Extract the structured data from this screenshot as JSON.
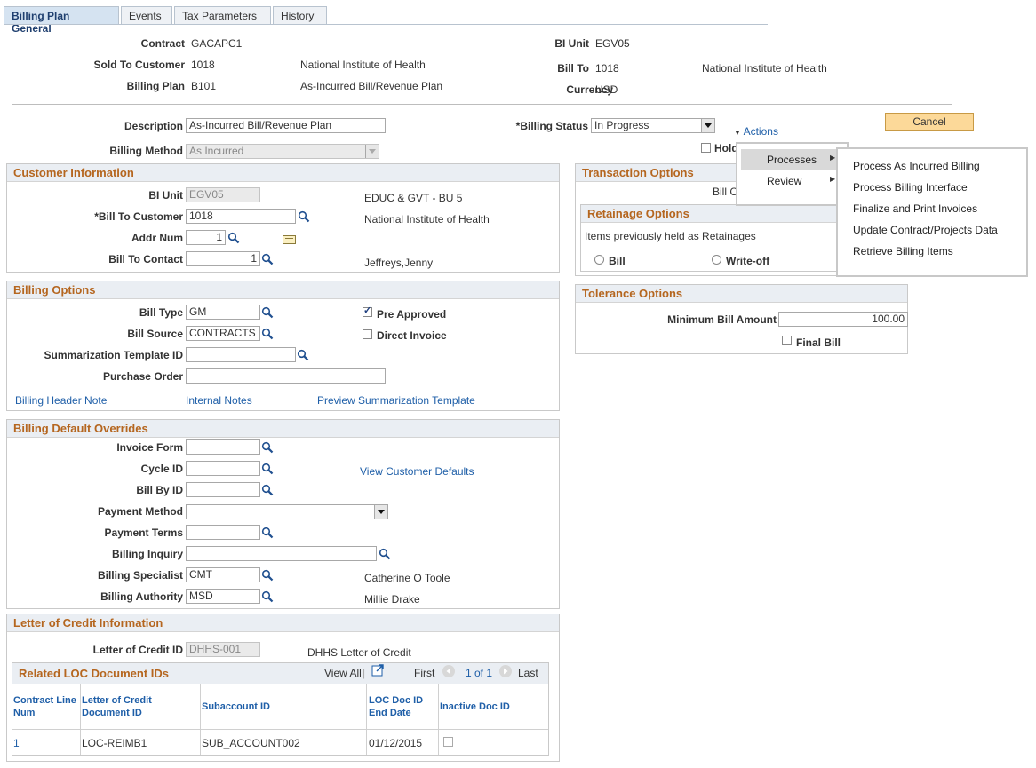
{
  "tabs": [
    "Billing Plan General",
    "Events",
    "Tax Parameters",
    "History"
  ],
  "header": {
    "contract_label": "Contract",
    "contract": "GACAPC1",
    "sold_to_label": "Sold To Customer",
    "sold_to": "1018",
    "sold_to_name": "National Institute of Health",
    "billing_plan_label": "Billing Plan",
    "billing_plan": "B101",
    "billing_plan_desc": "As-Incurred Bill/Revenue Plan",
    "bi_unit_label": "BI Unit",
    "bi_unit": "EGV05",
    "bill_to_label": "Bill To",
    "bill_to": "1018",
    "bill_to_name": "National Institute of Health",
    "currency_label": "Currency",
    "currency": "USD"
  },
  "form": {
    "description_label": "Description",
    "description": "As-Incurred Bill/Revenue Plan",
    "billing_status_label": "*Billing Status",
    "billing_status": "In Progress",
    "actions_label": "Actions",
    "cancel_label": "Cancel",
    "hold_label": "Hold",
    "billing_method_label": "Billing Method",
    "billing_method": "As Incurred"
  },
  "customer_info": {
    "title": "Customer Information",
    "bi_unit_label": "BI Unit",
    "bi_unit": "EGV05",
    "bi_unit_name": "EDUC & GVT - BU 5",
    "bill_to_label": "*Bill To Customer",
    "bill_to": "1018",
    "bill_to_name": "National Institute of Health",
    "addr_num_label": "Addr Num",
    "addr_num": "1",
    "contact_label": "Bill To Contact",
    "contact": "1",
    "contact_name": "Jeffreys,Jenny"
  },
  "billing_options": {
    "title": "Billing Options",
    "bill_type_label": "Bill Type",
    "bill_type": "GM",
    "bill_source_label": "Bill Source",
    "bill_source": "CONTRACTS",
    "summ_label": "Summarization Template ID",
    "summ": "",
    "po_label": "Purchase Order",
    "po": "",
    "pre_approved_label": "Pre Approved",
    "direct_invoice_label": "Direct Invoice",
    "link_header_note": "Billing Header Note",
    "link_internal_notes": "Internal Notes",
    "link_preview": "Preview Summarization Template"
  },
  "overrides": {
    "title": "Billing Default Overrides",
    "invoice_form_label": "Invoice Form",
    "cycle_id_label": "Cycle ID",
    "bill_by_label": "Bill By ID",
    "payment_method_label": "Payment Method",
    "payment_terms_label": "Payment Terms",
    "billing_inquiry_label": "Billing Inquiry",
    "specialist_label": "Billing Specialist",
    "specialist": "CMT",
    "specialist_name": "Catherine O Toole",
    "authority_label": "Billing Authority",
    "authority": "MSD",
    "authority_name": "Millie Drake",
    "view_defaults_link": "View Customer Defaults"
  },
  "loc": {
    "title": "Letter of Credit Information",
    "loc_id_label": "Letter of Credit ID",
    "loc_id": "DHHS-001",
    "loc_name": "DHHS Letter of Credit",
    "grid_title": "Related LOC Document IDs",
    "view_all": "View All",
    "first": "First",
    "page_info": "1 of 1",
    "last": "Last",
    "columns": [
      "Contract Line Num",
      "Letter of Credit Document ID",
      "Subaccount ID",
      "LOC Doc ID End Date",
      "Inactive Doc ID"
    ],
    "rows": [
      {
        "line": "1",
        "doc": "LOC-REIMB1",
        "sub": "SUB_ACCOUNT002",
        "end": "01/12/2015"
      }
    ]
  },
  "transaction": {
    "title": "Transaction Options",
    "bill_c": "Bill C",
    "retainage_title": "Retainage Options",
    "retainage_text": "Items previously held as Retainages",
    "bill_radio": "Bill",
    "writeoff_radio": "Write-off"
  },
  "tolerance": {
    "title": "Tolerance Options",
    "min_bill_label": "Minimum Bill Amount",
    "min_bill": "100.00",
    "final_bill_label": "Final Bill"
  },
  "actions_menu": {
    "items": [
      "Processes",
      "Review"
    ],
    "processes_sub": [
      "Process As Incurred Billing",
      "Process Billing Interface",
      "Finalize and Print Invoices",
      "Update Contract/Projects Data",
      "Retrieve Billing Items"
    ]
  },
  "colors": {
    "section_title": "#b5661f",
    "link": "#1f5fa8",
    "cancel_button": "#fcd999"
  }
}
